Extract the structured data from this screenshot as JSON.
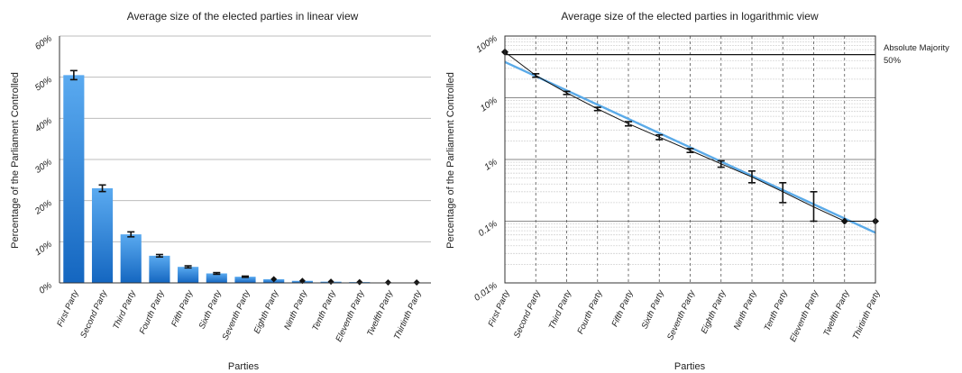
{
  "chart_data": [
    {
      "type": "bar",
      "title": "Average size of the elected parties in linear view",
      "xlabel": "Parties",
      "ylabel": "Percentage of the Parliament Controlled",
      "categories": [
        "First Party",
        "Second Party",
        "Third Party",
        "Fourth Party",
        "Fifth Party",
        "Sixth Party",
        "Seventh Party",
        "Eighth Party",
        "Ninth Party",
        "Tenth Party",
        "Eleventh Party",
        "Twelfth Party",
        "Thirtinth Party"
      ],
      "values": [
        50.5,
        23.0,
        11.8,
        6.6,
        3.9,
        2.3,
        1.5,
        0.9,
        0.5,
        0.3,
        0.2,
        0.1,
        0.1
      ],
      "error": [
        1.1,
        0.8,
        0.6,
        0.3,
        0.25,
        0.2,
        0.15,
        0.1,
        0.08,
        0.05,
        0.03,
        0.02,
        0.02
      ],
      "ylim": [
        0,
        60
      ],
      "yticks": [
        0,
        10,
        20,
        30,
        40,
        50,
        60
      ],
      "yticklabels": [
        "0%",
        "10%",
        "20%",
        "30%",
        "40%",
        "50%",
        "60%"
      ],
      "grid": true,
      "colors": {
        "bar_top": "#5aaaf0",
        "bar_bottom": "#1466c0",
        "grid": "#bdbdbd",
        "axis": "#333333"
      }
    },
    {
      "type": "line",
      "title": "Average size of the elected parties in logarithmic view",
      "xlabel": "Parties",
      "ylabel": "Percentage of the Parliament Controlled",
      "yscale": "log",
      "categories": [
        "First Party",
        "Second Party",
        "Third Party",
        "Fourth Party",
        "Fifth Party",
        "Sixth Party",
        "Seventh Party",
        "Eighth Party",
        "Ninth Party",
        "Tenth Party",
        "Eleventh Party",
        "Twelfth Party",
        "Thirtinth Party"
      ],
      "values": [
        55,
        23,
        12,
        6.6,
        3.8,
        2.3,
        1.4,
        0.85,
        0.52,
        0.3,
        0.17,
        0.1,
        0.1
      ],
      "error_low": [
        55,
        21.5,
        11.3,
        6.2,
        3.5,
        2.1,
        1.3,
        0.75,
        0.42,
        0.2,
        0.1,
        0.1,
        0.1
      ],
      "error_high": [
        55,
        24.5,
        12.7,
        7.0,
        4.1,
        2.5,
        1.5,
        0.95,
        0.65,
        0.42,
        0.3,
        0.1,
        0.1
      ],
      "fit_line": {
        "from": 38,
        "to": 0.065
      },
      "ylim": [
        0.01,
        100
      ],
      "yticks": [
        0.01,
        0.1,
        1,
        10,
        100
      ],
      "yticklabels": [
        "0.01%",
        "0.1%",
        "1%",
        "10%",
        "100%"
      ],
      "grid": true,
      "reference_line": {
        "value": 50,
        "label_line1": "Absolute Majority",
        "label_line2": "50%"
      },
      "colors": {
        "data_line": "#111111",
        "fit_line": "#5aaae8",
        "grid_major": "#8a8a8a",
        "grid_minor": "#d4d4d4",
        "axis": "#333333"
      }
    }
  ]
}
